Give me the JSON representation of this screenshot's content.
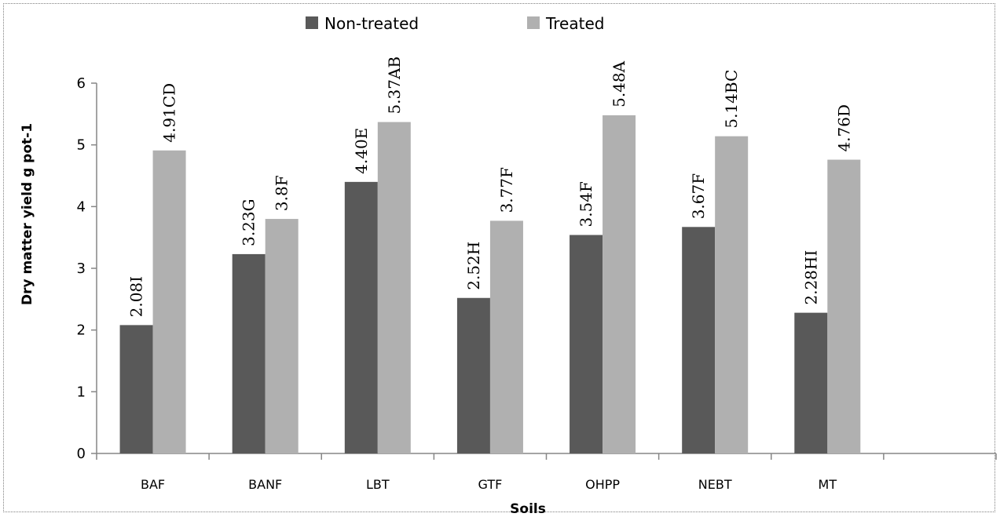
{
  "chart_data": {
    "type": "bar",
    "xlabel": "Soils",
    "ylabel": "Dry matter yield g pot-1",
    "ylim": [
      0,
      6
    ],
    "yticks": [
      0,
      1,
      2,
      3,
      4,
      5,
      6
    ],
    "grid": false,
    "legend_position": "top-center",
    "categories": [
      "BAF",
      "BANF",
      "LBT",
      "GTF",
      "OHPP",
      "NEBT",
      "MT",
      ""
    ],
    "series": [
      {
        "name": "Non-treated",
        "color": "#595959",
        "values": [
          2.08,
          3.23,
          4.4,
          2.52,
          3.54,
          3.67,
          2.28,
          null
        ],
        "labels": [
          "2.08I",
          "3.23G",
          "4.40E",
          "2.52H",
          "3.54F",
          "3.67F",
          "2.28HI",
          ""
        ]
      },
      {
        "name": "Treated",
        "color": "#b0b0b0",
        "values": [
          4.91,
          3.8,
          5.37,
          3.77,
          5.48,
          5.14,
          4.76,
          null
        ],
        "labels": [
          "4.91CD",
          "3.8F",
          "5.37AB",
          "3.77F",
          "5.48A",
          "5.14BC",
          "4.76D",
          ""
        ]
      }
    ]
  }
}
